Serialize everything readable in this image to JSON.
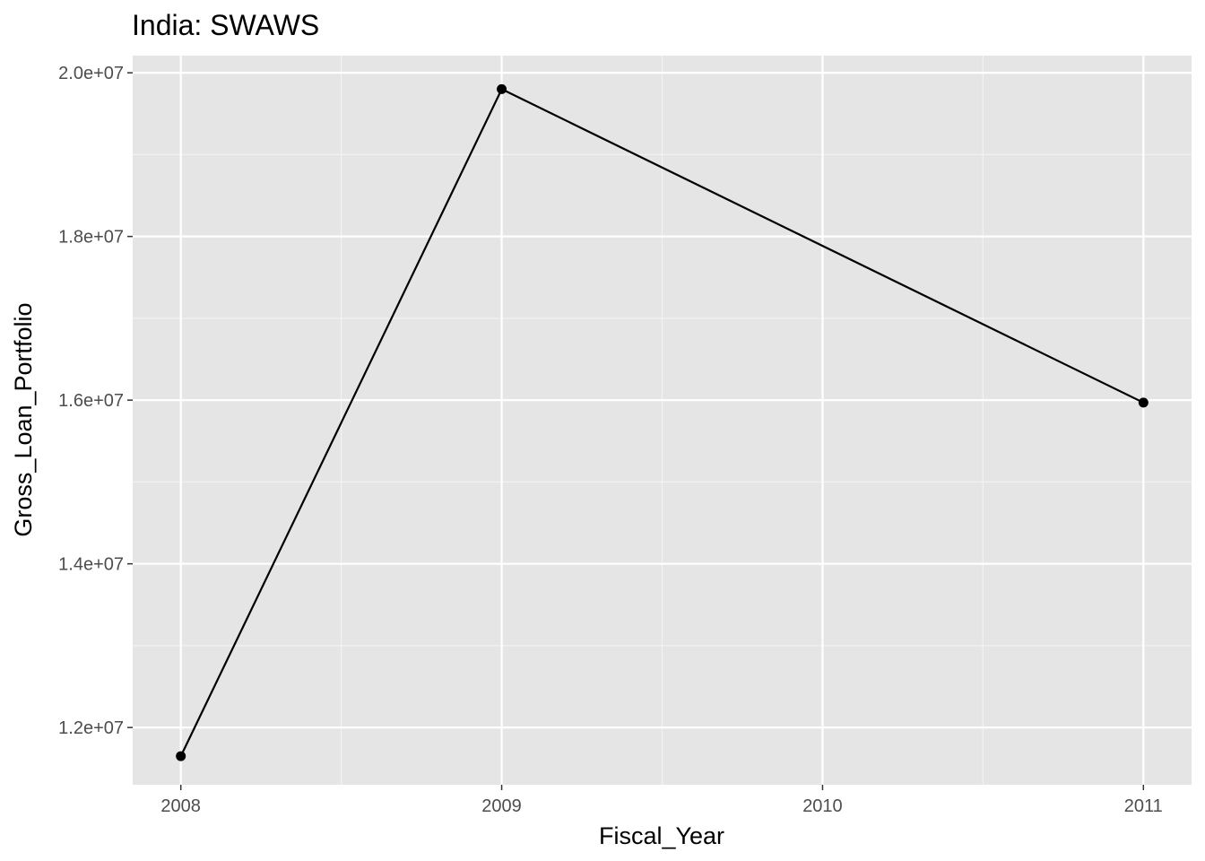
{
  "chart_data": {
    "type": "line",
    "title": "India:  SWAWS",
    "xlabel": "Fiscal_Year",
    "ylabel": "Gross_Loan_Portfolio",
    "x": [
      2008,
      2009,
      2011
    ],
    "y": [
      11650000,
      19800000,
      15970000
    ],
    "xlim": [
      2007.85,
      2011.15
    ],
    "ylim": [
      11300000,
      20210000
    ],
    "xticks": [
      2008,
      2009,
      2010,
      2011
    ],
    "xtick_labels": [
      "2008",
      "2009",
      "2010",
      "2011"
    ],
    "yticks": [
      12000000,
      14000000,
      16000000,
      18000000,
      20000000
    ],
    "ytick_labels": [
      "1.2e+07",
      "1.4e+07",
      "1.6e+07",
      "1.8e+07",
      "2.0e+07"
    ],
    "grid": true,
    "legend": "none",
    "colors": {
      "panel": "#e5e5e5",
      "grid_major": "#ffffff",
      "grid_minor": "#f2f2f2",
      "line": "#000000",
      "point": "#000000",
      "ticks": "#333333"
    }
  }
}
